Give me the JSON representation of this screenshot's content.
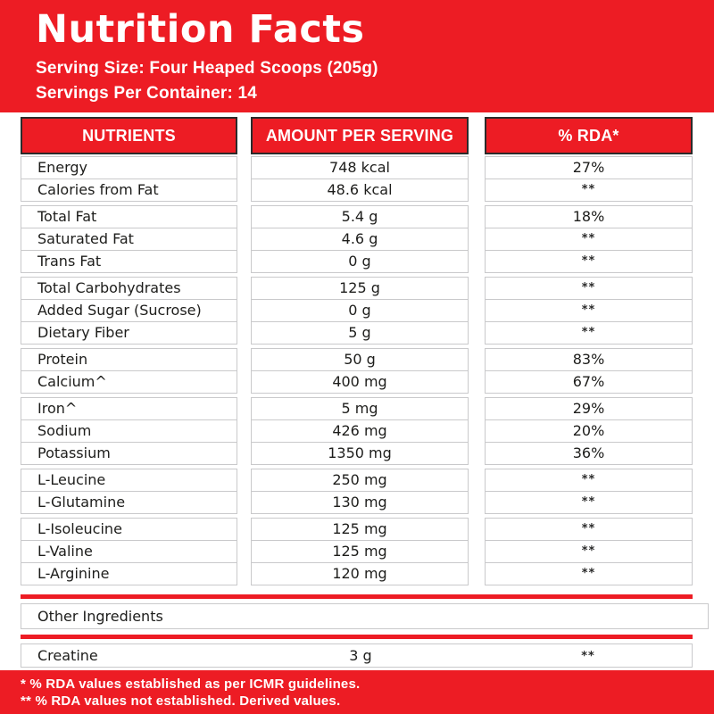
{
  "colors": {
    "red": "#ED1C24",
    "header_cell_border": "#2b2b2b",
    "grid_border": "#c9c9cb",
    "text": "#1d1d1b",
    "white": "#ffffff"
  },
  "header": {
    "title": "Nutrition Facts",
    "serving_size": "Serving Size: Four Heaped Scoops (205g)",
    "servings_per_container": "Servings Per Container: 14"
  },
  "table": {
    "columns": [
      {
        "label": "NUTRIENTS"
      },
      {
        "label": "AMOUNT PER SERVING"
      },
      {
        "label": "% RDA*"
      }
    ],
    "groups": [
      {
        "rows": [
          {
            "nutrient": "Energy",
            "amount": "748 kcal",
            "rda": "27%"
          },
          {
            "nutrient": "Calories from Fat",
            "amount": "48.6 kcal",
            "rda": "**"
          }
        ]
      },
      {
        "rows": [
          {
            "nutrient": "Total Fat",
            "amount": "5.4 g",
            "rda": "18%"
          },
          {
            "nutrient": "Saturated Fat",
            "amount": "4.6 g",
            "rda": "**"
          },
          {
            "nutrient": "Trans Fat",
            "amount": "0 g",
            "rda": "**"
          }
        ]
      },
      {
        "rows": [
          {
            "nutrient": "Total Carbohydrates",
            "amount": "125 g",
            "rda": "**"
          },
          {
            "nutrient": "Added Sugar (Sucrose)",
            "amount": "0 g",
            "rda": "**"
          },
          {
            "nutrient": "Dietary Fiber",
            "amount": "5 g",
            "rda": "**"
          }
        ]
      },
      {
        "rows": [
          {
            "nutrient": "Protein",
            "amount": "50 g",
            "rda": "83%"
          },
          {
            "nutrient": "Calcium^",
            "amount": "400 mg",
            "rda": "67%"
          }
        ]
      },
      {
        "rows": [
          {
            "nutrient": "Iron^",
            "amount": "5 mg",
            "rda": "29%"
          },
          {
            "nutrient": "Sodium",
            "amount": "426 mg",
            "rda": "20%"
          },
          {
            "nutrient": "Potassium",
            "amount": "1350 mg",
            "rda": "36%"
          }
        ]
      },
      {
        "rows": [
          {
            "nutrient": "L-Leucine",
            "amount": "250 mg",
            "rda": "**"
          },
          {
            "nutrient": "L-Glutamine",
            "amount": "130 mg",
            "rda": "**"
          }
        ]
      },
      {
        "rows": [
          {
            "nutrient": "L-Isoleucine",
            "amount": "125 mg",
            "rda": "**"
          },
          {
            "nutrient": "L-Valine",
            "amount": "125 mg",
            "rda": "**"
          },
          {
            "nutrient": "L-Arginine",
            "amount": "120 mg",
            "rda": "**"
          }
        ]
      }
    ]
  },
  "other_ingredients": {
    "section_label": "Other Ingredients",
    "rows": [
      {
        "nutrient": "Creatine",
        "amount": "3 g",
        "rda": "**"
      }
    ]
  },
  "footnotes": [
    "* % RDA values established as per ICMR guidelines.",
    "** % RDA values not established. Derived values."
  ]
}
